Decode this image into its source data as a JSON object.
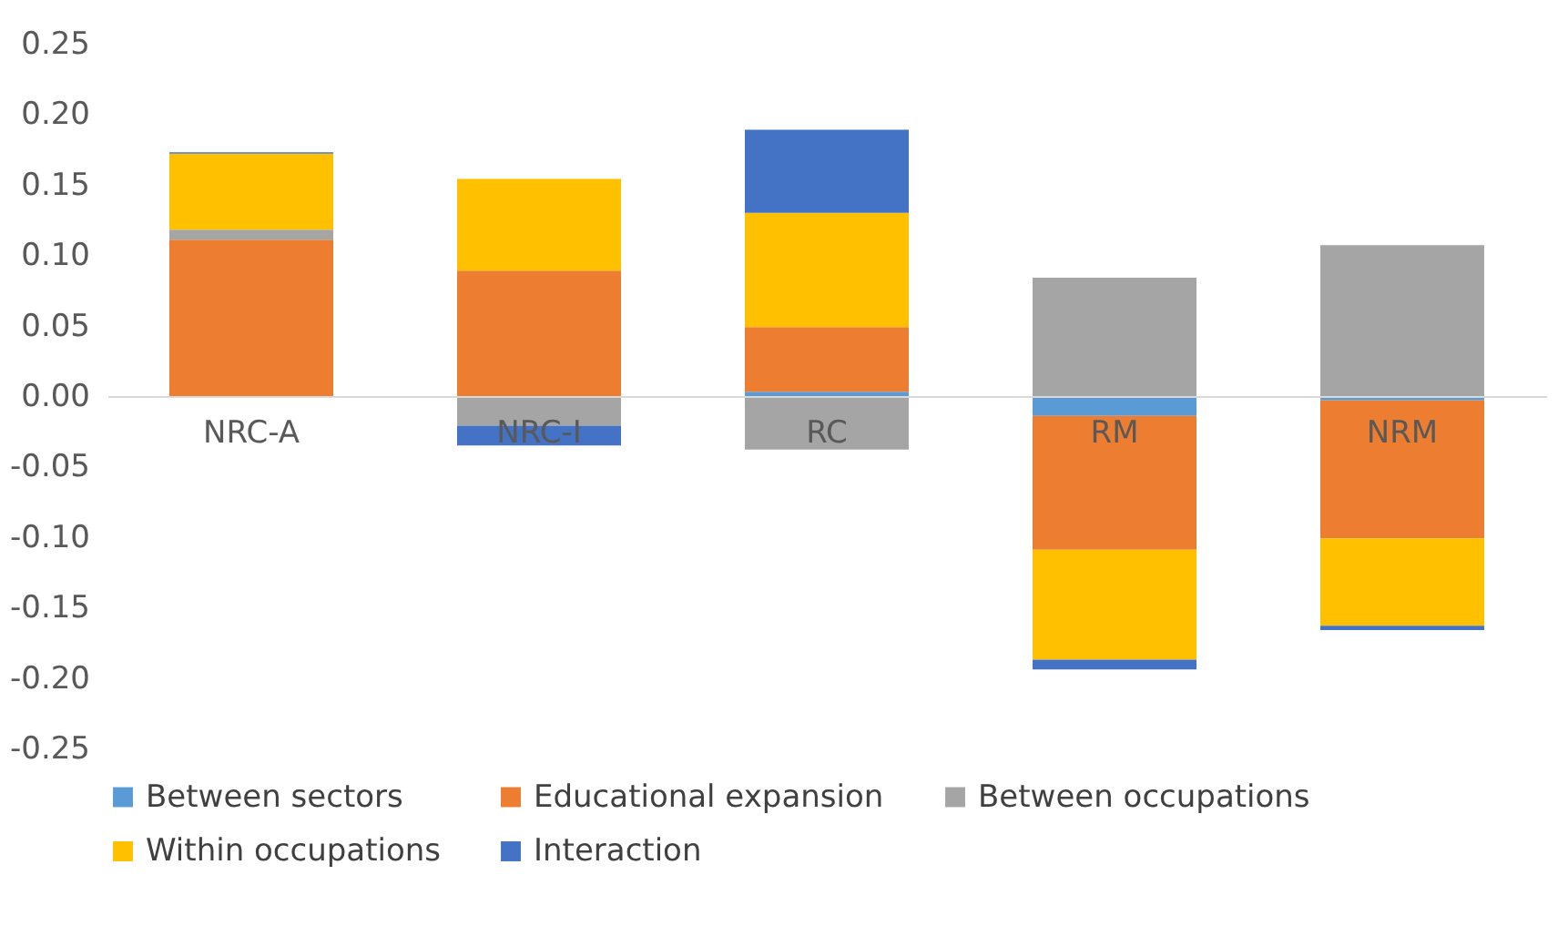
{
  "chart_data": {
    "type": "bar",
    "stacked": true,
    "categories": [
      "NRC-A",
      "NRC-I",
      "RC",
      "RM",
      "NRM"
    ],
    "series": [
      {
        "name": "Between sectors",
        "color": "#5b9bd5",
        "values": [
          0.0,
          0.0,
          0.003,
          -0.014,
          -0.003
        ]
      },
      {
        "name": "Educational expansion",
        "color": "#ed7d31",
        "values": [
          0.111,
          0.089,
          0.046,
          -0.095,
          -0.098
        ]
      },
      {
        "name": "Between occupations",
        "color": "#a5a5a5",
        "values": [
          0.007,
          -0.021,
          -0.038,
          0.084,
          0.107
        ]
      },
      {
        "name": "Within occupations",
        "color": "#ffc000",
        "values": [
          0.054,
          0.065,
          0.081,
          -0.078,
          -0.062
        ]
      },
      {
        "name": "Interaction",
        "color": "#4472c4",
        "values": [
          0.001,
          -0.014,
          0.059,
          -0.007,
          -0.003
        ]
      }
    ],
    "ylim": [
      -0.25,
      0.25
    ],
    "yticks": [
      {
        "value": -0.25,
        "label": "-0.25"
      },
      {
        "value": -0.2,
        "label": "-0.20"
      },
      {
        "value": -0.15,
        "label": "-0.15"
      },
      {
        "value": -0.1,
        "label": "-0.10"
      },
      {
        "value": -0.05,
        "label": "-0.05"
      },
      {
        "value": 0,
        "label": "0.00"
      },
      {
        "value": 0.05,
        "label": "0.05"
      },
      {
        "value": 0.1,
        "label": "0.10"
      },
      {
        "value": 0.15,
        "label": "0.15"
      },
      {
        "value": 0.2,
        "label": "0.20"
      },
      {
        "value": 0.25,
        "label": "0.25"
      }
    ],
    "grid": false,
    "legend": "bottom"
  }
}
